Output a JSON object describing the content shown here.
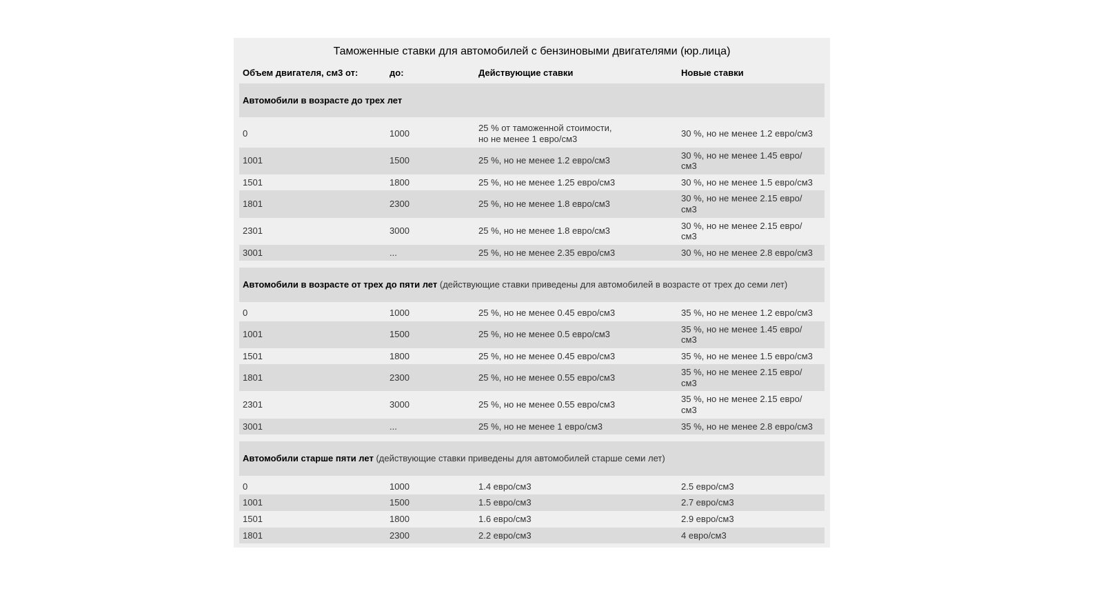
{
  "title": "Таможенные ставки для автомобилей с бензиновыми двигателями (юр.лица)",
  "columns": [
    "Объем двигателя, см3 от:",
    "до:",
    "Действующие ставки",
    "Новые ставки"
  ],
  "colors": {
    "page_bg": "#ffffff",
    "table_bg": "#efefef",
    "alt_row_bg": "#dbdbdb",
    "text": "#333333",
    "heading_text": "#000000"
  },
  "sections": [
    {
      "heading": "Автомобили в возрасте до трех лет",
      "note": "",
      "rows": [
        [
          "0",
          "1000",
          "25 % от таможенной стоимости,\nно не менее 1 евро/см3",
          "30 %, но не менее 1.2 евро/см3"
        ],
        [
          "1001",
          "1500",
          "25 %, но не менее 1.2 евро/см3",
          "30 %, но не менее 1.45 евро/\nсм3"
        ],
        [
          "1501",
          "1800",
          "25 %, но не менее 1.25 евро/см3",
          "30 %, но не менее 1.5 евро/см3"
        ],
        [
          "1801",
          "2300",
          "25 %, но не менее 1.8 евро/см3",
          "30 %, но не менее 2.15 евро/\nсм3"
        ],
        [
          "2301",
          "3000",
          "25 %, но не менее 1.8 евро/см3",
          "30 %, но не менее 2.15 евро/\nсм3"
        ],
        [
          "3001",
          "...",
          "25 %, но не менее 2.35 евро/см3",
          "30 %, но не менее 2.8 евро/см3"
        ]
      ]
    },
    {
      "heading": "Автомобили в возрасте от трех до пяти лет",
      "note": "(действующие ставки приведены для автомобилей в возрасте от трех до семи лет)",
      "rows": [
        [
          "0",
          "1000",
          "25 %, но не менее 0.45 евро/см3",
          "35 %, но не менее 1.2 евро/см3"
        ],
        [
          "1001",
          "1500",
          "25 %, но не менее 0.5 евро/см3",
          "35 %, но не менее 1.45 евро/\nсм3"
        ],
        [
          "1501",
          "1800",
          "25 %, но не менее 0.45 евро/см3",
          "35 %, но не менее 1.5 евро/см3"
        ],
        [
          "1801",
          "2300",
          "25 %, но не менее 0.55 евро/см3",
          "35 %, но не менее 2.15 евро/\nсм3"
        ],
        [
          "2301",
          "3000",
          "25 %, но не менее 0.55 евро/см3",
          "35 %, но не менее 2.15 евро/\nсм3"
        ],
        [
          "3001",
          "...",
          "25 %, но не менее 1 евро/см3",
          "35 %, но не менее 2.8 евро/см3"
        ]
      ]
    },
    {
      "heading": "Автомобили старше пяти лет",
      "note": "(действующие ставки приведены для автомобилей старше семи лет)",
      "rows": [
        [
          "0",
          "1000",
          "1.4 евро/см3",
          "2.5 евро/см3"
        ],
        [
          "1001",
          "1500",
          "1.5 евро/см3",
          "2.7 евро/см3"
        ],
        [
          "1501",
          "1800",
          "1.6 евро/см3",
          "2.9 евро/см3"
        ],
        [
          "1801",
          "2300",
          "2.2 евро/см3",
          "4 евро/см3"
        ]
      ]
    }
  ]
}
